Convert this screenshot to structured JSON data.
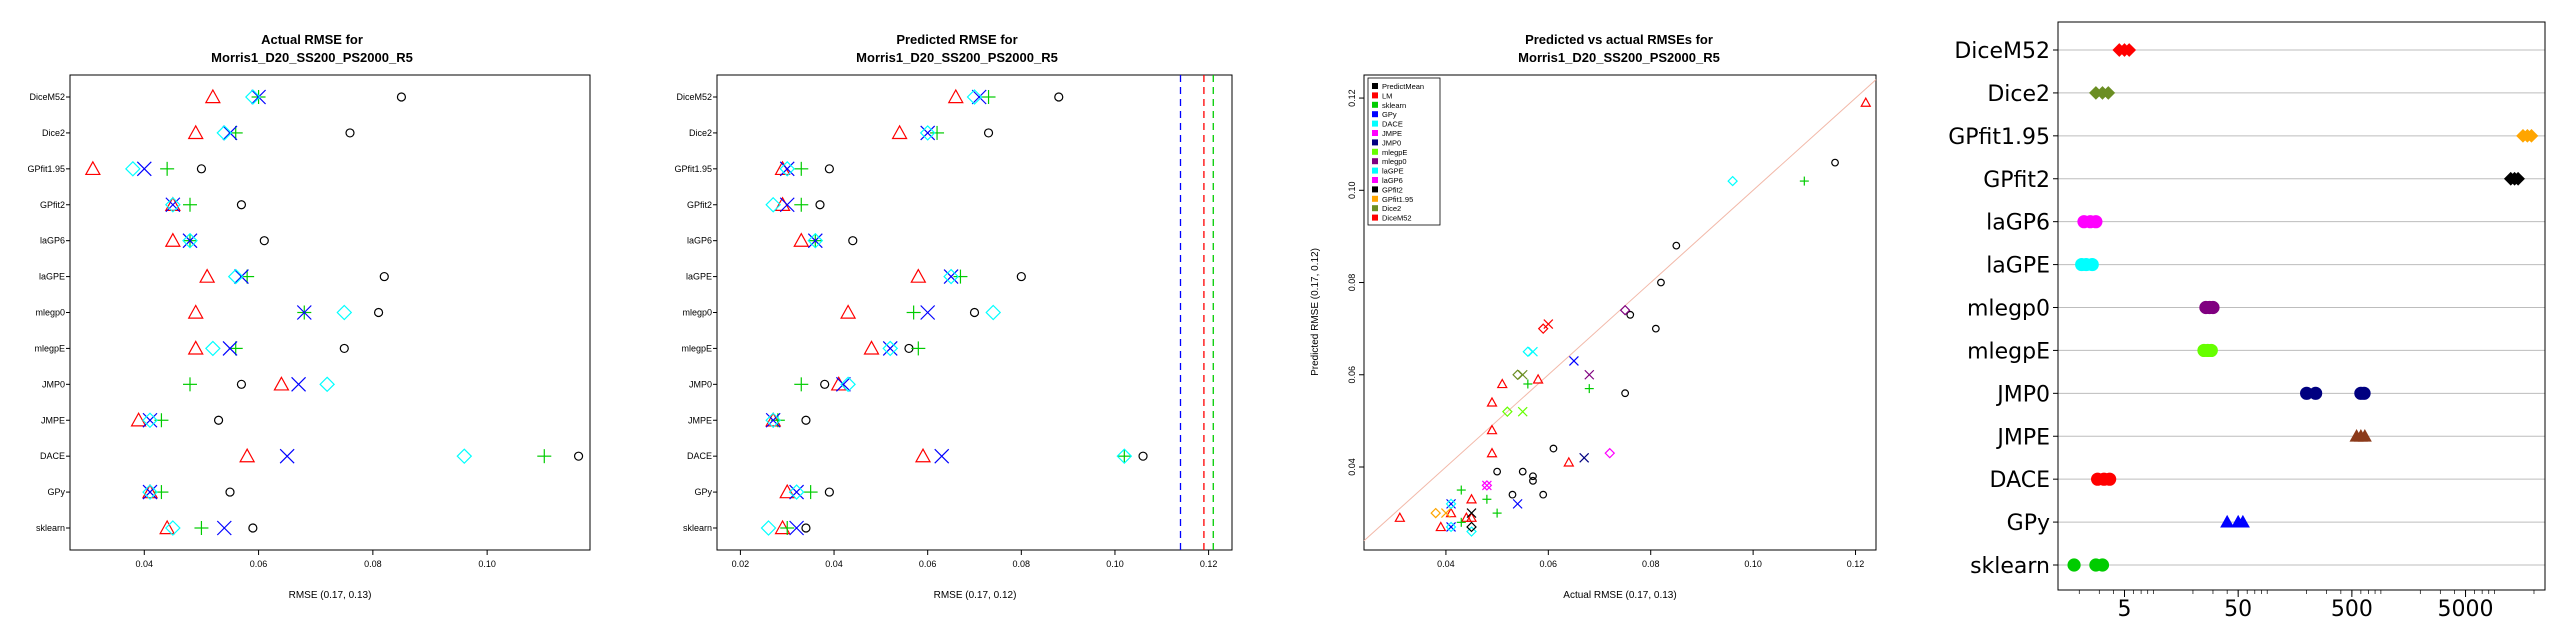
{
  "colors": {
    "PredictMean": "#000000",
    "LM": "#ff0000",
    "sklearn": "#00cc00",
    "GPy": "#0000ff",
    "DACE": "#00ffff",
    "JMPE": "#ff00ff",
    "JMP0": "#000080",
    "mlegpE": "#66ff00",
    "mlegp0": "#800080",
    "laGPE": "#00ffff",
    "laGP6": "#ff00ff",
    "GPfit2": "#000000",
    "GPfit1.95": "#ffa500",
    "Dice2": "#6b8e23",
    "DiceM52": "#ff0000",
    "JMPE_right": "#8b3a1a",
    "GPy_right": "#0000ff"
  },
  "chart_data": [
    {
      "type": "scatter",
      "title_line1": "Actual RMSE for",
      "title_line2": "Morris1_D20_SS200_PS2000_R5",
      "xlabel": "RMSE (0.17, 0.13)",
      "xticks": [
        "0.04",
        "0.06",
        "0.08",
        "0.10"
      ],
      "xlim": [
        0.027,
        0.118
      ],
      "categories": [
        "DiceM52",
        "Dice2",
        "GPfit1.95",
        "GPfit2",
        "laGP6",
        "laGPE",
        "mlegp0",
        "mlegpE",
        "JMP0",
        "JMPE",
        "DACE",
        "GPy",
        "sklearn"
      ],
      "series": [
        {
          "marker": "circle",
          "color": "#000000",
          "values": [
            0.085,
            0.076,
            0.05,
            0.057,
            0.061,
            0.082,
            0.081,
            0.075,
            0.057,
            0.053,
            0.116,
            0.055,
            0.059
          ]
        },
        {
          "marker": "triangle",
          "color": "#ff0000",
          "values": [
            0.052,
            0.049,
            0.031,
            0.045,
            0.045,
            0.051,
            0.049,
            0.049,
            0.064,
            0.039,
            0.058,
            0.041,
            0.044
          ]
        },
        {
          "marker": "plus",
          "color": "#00cc00",
          "values": [
            0.06,
            0.056,
            0.044,
            0.048,
            0.048,
            0.058,
            0.068,
            0.056,
            0.048,
            0.043,
            0.11,
            0.043,
            0.05
          ]
        },
        {
          "marker": "x",
          "color": "#0000ff",
          "values": [
            0.06,
            0.055,
            0.04,
            0.045,
            0.048,
            0.057,
            0.068,
            0.055,
            0.067,
            0.041,
            0.065,
            0.041,
            0.054
          ]
        },
        {
          "marker": "diamond",
          "color": "#00ffff",
          "values": [
            0.059,
            0.054,
            0.038,
            0.045,
            0.048,
            0.056,
            0.075,
            0.052,
            0.072,
            0.041,
            0.096,
            0.041,
            0.045
          ]
        }
      ]
    },
    {
      "type": "scatter",
      "title_line1": "Predicted RMSE for",
      "title_line2": "Morris1_D20_SS200_PS2000_R5",
      "xlabel": "RMSE (0.17, 0.12)",
      "xticks": [
        "0.02",
        "0.04",
        "0.06",
        "0.08",
        "0.10",
        "0.12"
      ],
      "xlim": [
        0.015,
        0.125
      ],
      "vlines": [
        {
          "x": 0.114,
          "color": "#0000ff"
        },
        {
          "x": 0.119,
          "color": "#ff0000"
        },
        {
          "x": 0.121,
          "color": "#00cc00"
        }
      ],
      "categories": [
        "DiceM52",
        "Dice2",
        "GPfit1.95",
        "GPfit2",
        "laGP6",
        "laGPE",
        "mlegp0",
        "mlegpE",
        "JMP0",
        "JMPE",
        "DACE",
        "GPy",
        "sklearn"
      ],
      "series": [
        {
          "marker": "circle",
          "color": "#000000",
          "values": [
            0.088,
            0.073,
            0.039,
            0.037,
            0.044,
            0.08,
            0.07,
            0.056,
            0.038,
            0.034,
            0.106,
            0.039,
            0.034
          ]
        },
        {
          "marker": "triangle",
          "color": "#ff0000",
          "values": [
            0.066,
            0.054,
            0.029,
            0.029,
            0.033,
            0.058,
            0.043,
            0.048,
            0.041,
            0.027,
            0.059,
            0.03,
            0.029
          ]
        },
        {
          "marker": "plus",
          "color": "#00cc00",
          "values": [
            0.073,
            0.062,
            0.033,
            0.033,
            0.036,
            0.067,
            0.057,
            0.058,
            0.033,
            0.028,
            0.102,
            0.035,
            0.03
          ]
        },
        {
          "marker": "x",
          "color": "#0000ff",
          "values": [
            0.071,
            0.06,
            0.03,
            0.03,
            0.036,
            0.065,
            0.06,
            0.052,
            0.042,
            0.027,
            0.063,
            0.032,
            0.032
          ]
        },
        {
          "marker": "diamond",
          "color": "#00ffff",
          "values": [
            0.07,
            0.06,
            0.03,
            0.027,
            0.036,
            0.065,
            0.074,
            0.052,
            0.043,
            0.027,
            0.102,
            0.032,
            0.026
          ]
        }
      ]
    },
    {
      "type": "scatter",
      "title_line1": "Predicted vs actual RMSEs for",
      "title_line2": "Morris1_D20_SS200_PS2000_R5",
      "xlabel": "Actual RMSE (0.17, 0.13)",
      "ylabel": "Predicted RMSE (0.17, 0.12)",
      "xticks": [
        "0.04",
        "0.06",
        "0.08",
        "0.10",
        "0.12"
      ],
      "yticks": [
        "0.04",
        "0.06",
        "0.08",
        "0.10",
        "0.12"
      ],
      "xlim": [
        0.024,
        0.124
      ],
      "ylim": [
        0.022,
        0.125
      ],
      "legend_position": "top-left",
      "legend": [
        "PredictMean",
        "LM",
        "sklearn",
        "GPy",
        "DACE",
        "JMPE",
        "JMP0",
        "mlegpE",
        "mlegp0",
        "laGPE",
        "laGP6",
        "GPfit2",
        "GPfit1.95",
        "Dice2",
        "DiceM52"
      ],
      "points": [
        {
          "x": 0.059,
          "y": 0.034,
          "s": "PredictMean",
          "m": "circle"
        },
        {
          "x": 0.055,
          "y": 0.039,
          "s": "PredictMean",
          "m": "circle"
        },
        {
          "x": 0.116,
          "y": 0.106,
          "s": "PredictMean",
          "m": "circle"
        },
        {
          "x": 0.053,
          "y": 0.034,
          "s": "PredictMean",
          "m": "circle"
        },
        {
          "x": 0.057,
          "y": 0.038,
          "s": "PredictMean",
          "m": "circle"
        },
        {
          "x": 0.075,
          "y": 0.056,
          "s": "PredictMean",
          "m": "circle"
        },
        {
          "x": 0.081,
          "y": 0.07,
          "s": "PredictMean",
          "m": "circle"
        },
        {
          "x": 0.082,
          "y": 0.08,
          "s": "PredictMean",
          "m": "circle"
        },
        {
          "x": 0.061,
          "y": 0.044,
          "s": "PredictMean",
          "m": "circle"
        },
        {
          "x": 0.057,
          "y": 0.037,
          "s": "PredictMean",
          "m": "circle"
        },
        {
          "x": 0.05,
          "y": 0.039,
          "s": "PredictMean",
          "m": "circle"
        },
        {
          "x": 0.076,
          "y": 0.073,
          "s": "PredictMean",
          "m": "circle"
        },
        {
          "x": 0.085,
          "y": 0.088,
          "s": "PredictMean",
          "m": "circle"
        },
        {
          "x": 0.044,
          "y": 0.029,
          "s": "LM",
          "m": "triangle"
        },
        {
          "x": 0.041,
          "y": 0.03,
          "s": "LM",
          "m": "triangle"
        },
        {
          "x": 0.058,
          "y": 0.059,
          "s": "LM",
          "m": "triangle"
        },
        {
          "x": 0.039,
          "y": 0.027,
          "s": "LM",
          "m": "triangle"
        },
        {
          "x": 0.064,
          "y": 0.041,
          "s": "LM",
          "m": "triangle"
        },
        {
          "x": 0.049,
          "y": 0.048,
          "s": "LM",
          "m": "triangle"
        },
        {
          "x": 0.049,
          "y": 0.043,
          "s": "LM",
          "m": "triangle"
        },
        {
          "x": 0.051,
          "y": 0.058,
          "s": "LM",
          "m": "triangle"
        },
        {
          "x": 0.045,
          "y": 0.033,
          "s": "LM",
          "m": "triangle"
        },
        {
          "x": 0.045,
          "y": 0.029,
          "s": "LM",
          "m": "triangle"
        },
        {
          "x": 0.031,
          "y": 0.029,
          "s": "LM",
          "m": "triangle"
        },
        {
          "x": 0.049,
          "y": 0.054,
          "s": "LM",
          "m": "triangle"
        },
        {
          "x": 0.122,
          "y": 0.119,
          "s": "LM",
          "m": "triangle"
        },
        {
          "x": 0.05,
          "y": 0.03,
          "s": "sklearn",
          "m": "plus"
        },
        {
          "x": 0.043,
          "y": 0.035,
          "s": "sklearn",
          "m": "plus"
        },
        {
          "x": 0.11,
          "y": 0.102,
          "s": "sklearn",
          "m": "plus"
        },
        {
          "x": 0.043,
          "y": 0.028,
          "s": "sklearn",
          "m": "plus"
        },
        {
          "x": 0.048,
          "y": 0.033,
          "s": "sklearn",
          "m": "plus"
        },
        {
          "x": 0.056,
          "y": 0.058,
          "s": "sklearn",
          "m": "plus"
        },
        {
          "x": 0.068,
          "y": 0.057,
          "s": "sklearn",
          "m": "plus"
        },
        {
          "x": 0.054,
          "y": 0.032,
          "s": "GPy",
          "m": "x"
        },
        {
          "x": 0.041,
          "y": 0.032,
          "s": "GPy",
          "m": "x"
        },
        {
          "x": 0.065,
          "y": 0.063,
          "s": "GPy",
          "m": "x"
        },
        {
          "x": 0.041,
          "y": 0.027,
          "s": "GPy",
          "m": "x"
        },
        {
          "x": 0.045,
          "y": 0.026,
          "s": "DACE",
          "m": "diamond"
        },
        {
          "x": 0.041,
          "y": 0.032,
          "s": "DACE",
          "m": "diamond"
        },
        {
          "x": 0.096,
          "y": 0.102,
          "s": "DACE",
          "m": "diamond"
        },
        {
          "x": 0.041,
          "y": 0.027,
          "s": "DACE",
          "m": "diamond"
        },
        {
          "x": 0.072,
          "y": 0.043,
          "s": "JMPE",
          "m": "diamond"
        },
        {
          "x": 0.067,
          "y": 0.042,
          "s": "JMP0",
          "m": "x"
        },
        {
          "x": 0.052,
          "y": 0.052,
          "s": "mlegpE",
          "m": "diamond"
        },
        {
          "x": 0.055,
          "y": 0.052,
          "s": "mlegpE",
          "m": "x"
        },
        {
          "x": 0.075,
          "y": 0.074,
          "s": "mlegp0",
          "m": "diamond"
        },
        {
          "x": 0.068,
          "y": 0.06,
          "s": "mlegp0",
          "m": "x"
        },
        {
          "x": 0.056,
          "y": 0.065,
          "s": "laGPE",
          "m": "diamond"
        },
        {
          "x": 0.057,
          "y": 0.065,
          "s": "laGPE",
          "m": "x"
        },
        {
          "x": 0.048,
          "y": 0.036,
          "s": "laGP6",
          "m": "diamond"
        },
        {
          "x": 0.048,
          "y": 0.036,
          "s": "laGP6",
          "m": "x"
        },
        {
          "x": 0.045,
          "y": 0.027,
          "s": "GPfit2",
          "m": "diamond"
        },
        {
          "x": 0.045,
          "y": 0.03,
          "s": "GPfit2",
          "m": "x"
        },
        {
          "x": 0.038,
          "y": 0.03,
          "s": "GPfit1.95",
          "m": "diamond"
        },
        {
          "x": 0.04,
          "y": 0.03,
          "s": "GPfit1.95",
          "m": "x"
        },
        {
          "x": 0.054,
          "y": 0.06,
          "s": "Dice2",
          "m": "diamond"
        },
        {
          "x": 0.055,
          "y": 0.06,
          "s": "Dice2",
          "m": "x"
        },
        {
          "x": 0.059,
          "y": 0.07,
          "s": "DiceM52",
          "m": "diamond"
        },
        {
          "x": 0.06,
          "y": 0.071,
          "s": "DiceM52",
          "m": "x"
        }
      ],
      "reference_line": "y = x"
    },
    {
      "type": "scatter",
      "xscale": "log",
      "xticks": [
        "5",
        "50",
        "500",
        "5000"
      ],
      "xtick_values": [
        5,
        50,
        500,
        5000
      ],
      "xlim": [
        1.3,
        25000
      ],
      "grid": true,
      "categories": [
        "DiceM52",
        "Dice2",
        "GPfit1.95",
        "GPfit2",
        "laGP6",
        "laGPE",
        "mlegp0",
        "mlegpE",
        "JMP0",
        "JMPE",
        "DACE",
        "GPy",
        "sklearn"
      ],
      "series": [
        {
          "category": "DiceM52",
          "color": "#ff0000",
          "marker": "diamond",
          "values": [
            4.5,
            5.0,
            5.5
          ]
        },
        {
          "category": "Dice2",
          "color": "#6b8e23",
          "marker": "diamond",
          "values": [
            2.8,
            3.2,
            3.6
          ]
        },
        {
          "category": "GPfit1.95",
          "color": "#ffa500",
          "marker": "diamond",
          "values": [
            16000,
            17500,
            19000
          ]
        },
        {
          "category": "GPfit2",
          "color": "#000000",
          "marker": "diamond",
          "values": [
            12500,
            13500,
            14500
          ]
        },
        {
          "category": "laGP6",
          "color": "#ff00ff",
          "marker": "circle",
          "values": [
            2.2,
            2.5,
            2.8
          ]
        },
        {
          "category": "laGPE",
          "color": "#00ffff",
          "marker": "circle",
          "values": [
            2.1,
            2.3,
            2.6
          ]
        },
        {
          "category": "mlegp0",
          "color": "#800080",
          "marker": "circle",
          "values": [
            26,
            28,
            30
          ]
        },
        {
          "category": "mlegpE",
          "color": "#66ff00",
          "marker": "circle",
          "values": [
            25,
            27,
            29
          ]
        },
        {
          "category": "JMP0",
          "color": "#000080",
          "marker": "circle",
          "values": [
            200,
            240,
            600,
            640
          ]
        },
        {
          "category": "JMPE",
          "color": "#8b3a1a",
          "marker": "triangle",
          "values": [
            550,
            600,
            650
          ]
        },
        {
          "category": "DACE",
          "color": "#ff0000",
          "marker": "circle",
          "values": [
            2.9,
            3.3,
            3.7
          ]
        },
        {
          "category": "GPy",
          "color": "#0000ff",
          "marker": "triangle",
          "values": [
            40,
            50,
            55
          ]
        },
        {
          "category": "sklearn",
          "color": "#00cc00",
          "marker": "circle",
          "values": [
            1.8,
            2.8,
            3.2
          ]
        }
      ]
    }
  ]
}
